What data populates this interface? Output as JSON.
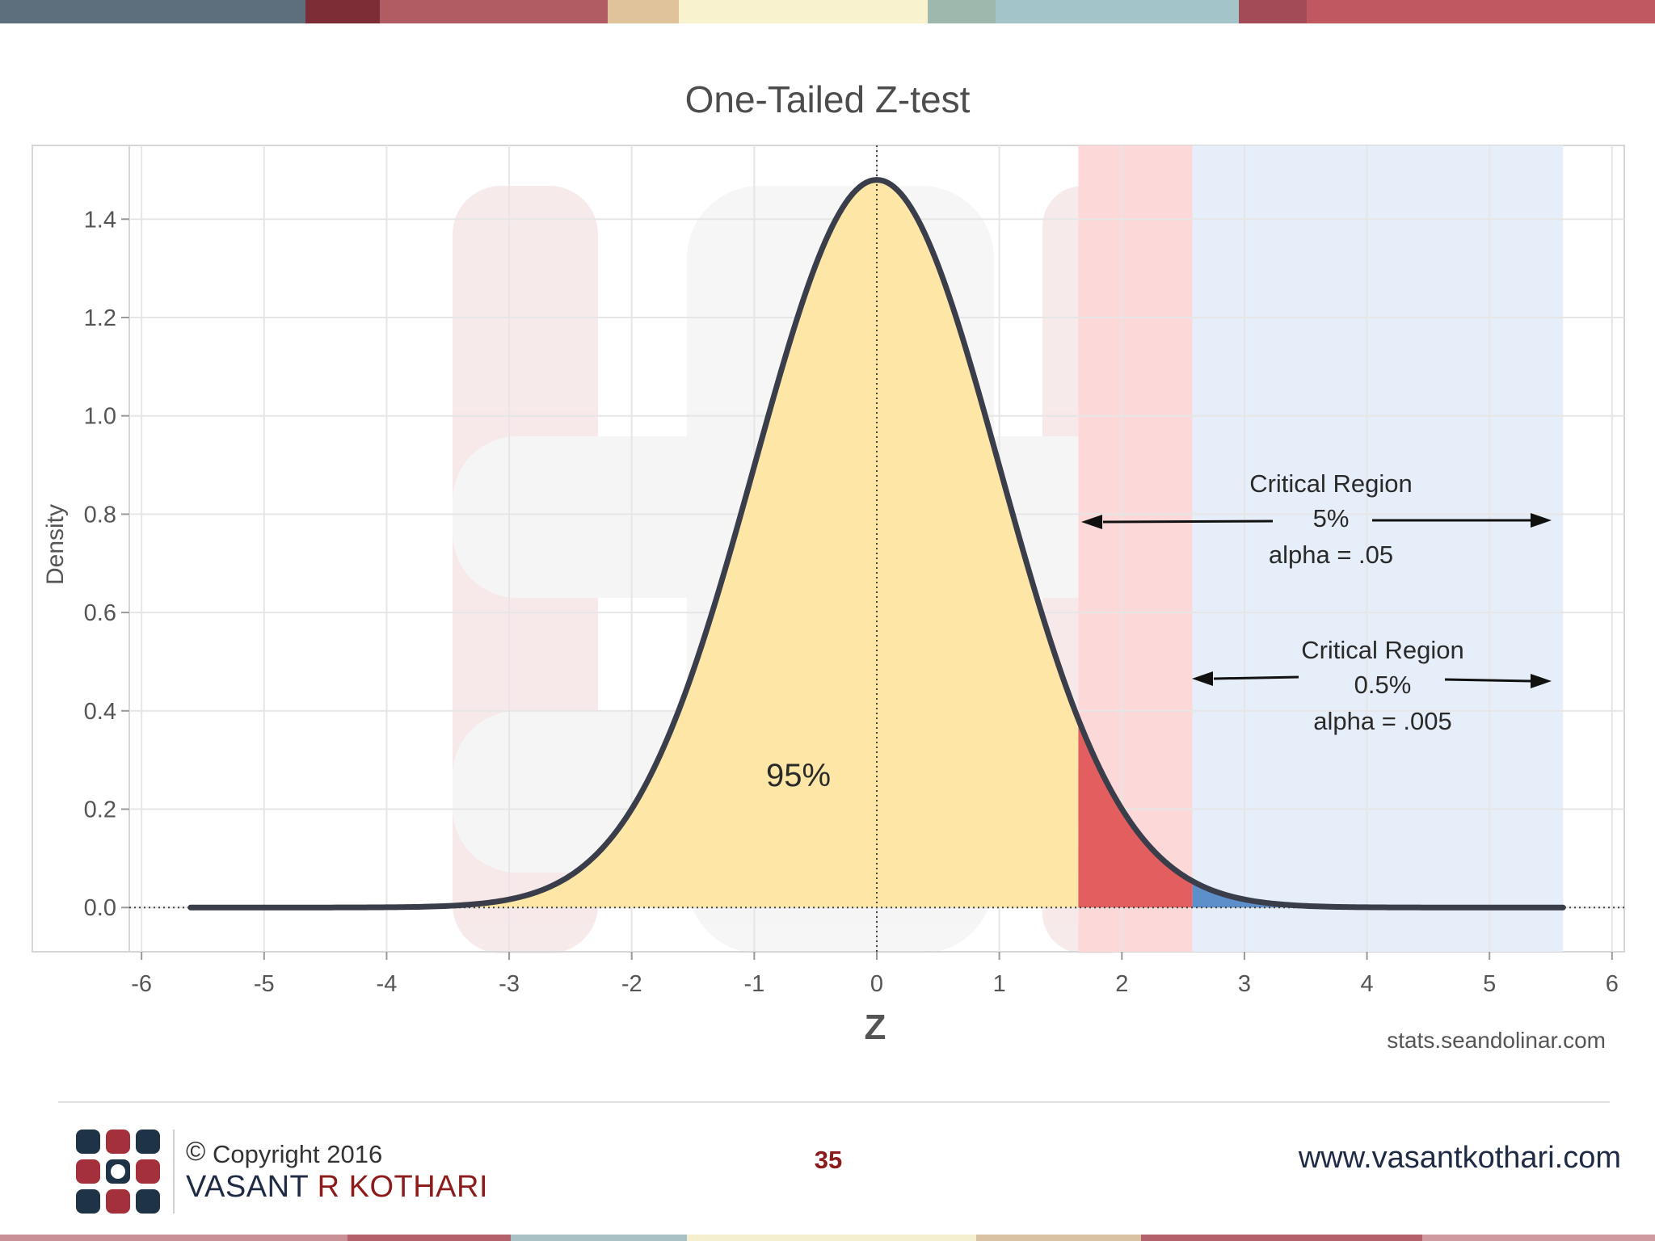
{
  "slide": {
    "top_strip_colors": [
      "#5d6f7c",
      "#7d2d36",
      "#b15c63",
      "#e0c39b",
      "#f8f2cf",
      "#9eb8ad",
      "#a3c4c9",
      "#a34b56",
      "#c0595f"
    ],
    "bottom_strip_colors": [
      "#c99097",
      "#b3626b",
      "#a9c1c5",
      "#f3efcf",
      "#d9c2a3",
      "#b3626b",
      "#cf9aa0"
    ],
    "footer": {
      "copyright_symbol": "©",
      "copyright_text": "Copyright 2016",
      "author_first": "VASANT",
      "author_last": "R KOTHARI",
      "page_number": "35",
      "website": "www.vasantkothari.com"
    },
    "colors": {
      "accent": "#8c1c1c",
      "navy": "#1f2a44",
      "body_fill": "#fde6a6",
      "critical_5_band": "#fdd8d8",
      "critical_05_band": "#e6eef9",
      "critical_5_fill": "#e35f5f",
      "critical_05_fill": "#5d8fcb",
      "curve": "#3a3d4a"
    }
  },
  "chart_data": {
    "type": "area",
    "title": "One-Tailed Z-test",
    "xlabel": "Z",
    "ylabel": "Density",
    "xlim": [
      -6.1,
      6.1
    ],
    "ylim": [
      -0.09,
      1.55
    ],
    "x_ticks": [
      -6,
      -5,
      -4,
      -3,
      -2,
      -1,
      0,
      1,
      2,
      3,
      4,
      5,
      6
    ],
    "y_ticks": [
      0.0,
      0.2,
      0.4,
      0.6,
      0.8,
      1.0,
      1.2,
      1.4
    ],
    "y_tick_labels": [
      "0.0",
      "0.2",
      "0.4",
      "0.6",
      "0.8",
      "1.0",
      "1.2",
      "1.4"
    ],
    "grid": true,
    "curve": {
      "x_range": [
        -5.6,
        5.6
      ],
      "peak_density": 1.48
    },
    "regions": [
      {
        "label": "95%",
        "from": -5.6,
        "to": 1.645
      },
      {
        "label": "Critical Region 5%",
        "from": 1.645,
        "to": 2.576
      },
      {
        "label": "Critical Region 0.5%",
        "from": 2.576,
        "to": 5.6
      }
    ],
    "annotations": {
      "body_label": "95%",
      "critical_5": {
        "title": "Critical Region",
        "percent": "5%",
        "alpha": "alpha = .05"
      },
      "critical_05": {
        "title": "Critical Region",
        "percent": "0.5%",
        "alpha": "alpha = .005"
      },
      "source": "stats.seandolinar.com"
    }
  }
}
